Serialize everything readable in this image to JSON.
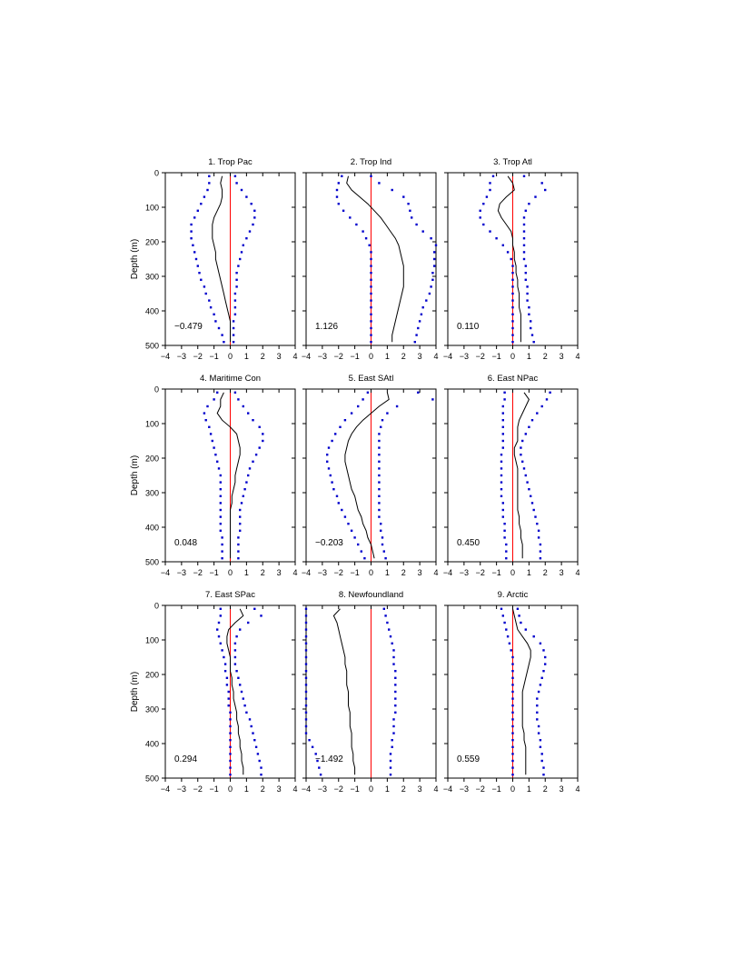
{
  "figure": {
    "ylabel": "Depth  (m)",
    "x_ticks": [
      -4,
      -3,
      -2,
      -1,
      0,
      1,
      2,
      3,
      4
    ],
    "y_ticks": [
      0,
      100,
      200,
      300,
      400,
      500
    ],
    "xlim": [
      -4,
      4
    ],
    "ylim": [
      0,
      500
    ],
    "colors": {
      "mean_line": "#000000",
      "bounds": "#0000cc",
      "zero_line": "#ff0000",
      "axes": "#000000"
    }
  },
  "chart_data": [
    {
      "type": "line",
      "title": "1. Trop Pac",
      "annotation": "−0.479",
      "depth": [
        10,
        30,
        50,
        70,
        90,
        110,
        130,
        150,
        170,
        190,
        210,
        230,
        250,
        270,
        290,
        310,
        330,
        350,
        370,
        390,
        410,
        430,
        450,
        470,
        490
      ],
      "series": [
        {
          "values": [
            -0.5,
            -0.6,
            -0.5,
            -0.5,
            -0.6,
            -0.8,
            -1.0,
            -1.1,
            -1.1,
            -1.1,
            -1.0,
            -0.9,
            -0.9,
            -0.8,
            -0.7,
            -0.6,
            -0.5,
            -0.4,
            -0.3,
            -0.2,
            -0.1,
            0.0,
            0.0,
            0.0,
            0.0
          ]
        },
        {
          "values": [
            -1.3,
            -1.3,
            -1.4,
            -1.6,
            -1.8,
            -2.0,
            -2.2,
            -2.4,
            -2.4,
            -2.4,
            -2.3,
            -2.2,
            -2.1,
            -2.0,
            -1.9,
            -1.8,
            -1.6,
            -1.5,
            -1.3,
            -1.2,
            -1.0,
            -0.9,
            -0.7,
            -0.5,
            -0.4
          ]
        },
        {
          "values": [
            0.3,
            0.4,
            0.7,
            1.0,
            1.3,
            1.5,
            1.5,
            1.4,
            1.2,
            1.0,
            0.8,
            0.7,
            0.6,
            0.5,
            0.4,
            0.4,
            0.4,
            0.3,
            0.3,
            0.3,
            0.3,
            0.2,
            0.2,
            0.2,
            0.2
          ]
        }
      ]
    },
    {
      "type": "line",
      "title": "2. Trop Ind",
      "annotation": "1.126",
      "depth": [
        10,
        30,
        50,
        70,
        90,
        110,
        130,
        150,
        170,
        190,
        210,
        230,
        250,
        270,
        290,
        310,
        330,
        350,
        370,
        390,
        410,
        430,
        450,
        470,
        490
      ],
      "series": [
        {
          "values": [
            -1.4,
            -1.5,
            -1.2,
            -0.7,
            -0.2,
            0.2,
            0.6,
            0.9,
            1.2,
            1.5,
            1.7,
            1.8,
            1.9,
            2.0,
            2.0,
            2.0,
            2.0,
            1.9,
            1.8,
            1.7,
            1.6,
            1.5,
            1.4,
            1.3,
            1.3
          ]
        },
        {
          "values": [
            -1.8,
            -2.0,
            -2.1,
            -2.1,
            -2.0,
            -1.7,
            -1.3,
            -0.9,
            -0.5,
            -0.3,
            -0.1,
            0.0,
            0.0,
            0.0,
            0.0,
            0.0,
            0.0,
            0.0,
            0.0,
            0.0,
            0.0,
            0.0,
            0.0,
            0.0,
            0.0
          ]
        },
        {
          "values": [
            0.0,
            0.5,
            1.3,
            2.0,
            2.3,
            2.4,
            2.5,
            2.8,
            3.2,
            3.7,
            4.0,
            3.9,
            3.9,
            3.9,
            3.8,
            3.8,
            3.7,
            3.6,
            3.4,
            3.2,
            3.1,
            3.0,
            2.9,
            2.8,
            2.7
          ]
        }
      ]
    },
    {
      "type": "line",
      "title": "3. Trop Atl",
      "annotation": "0.110",
      "depth": [
        10,
        30,
        50,
        70,
        90,
        110,
        130,
        150,
        170,
        190,
        210,
        230,
        250,
        270,
        290,
        310,
        330,
        350,
        370,
        390,
        410,
        430,
        450,
        470,
        490
      ],
      "series": [
        {
          "values": [
            -0.3,
            0.0,
            0.1,
            -0.4,
            -0.8,
            -0.9,
            -0.7,
            -0.4,
            -0.1,
            0.0,
            0.0,
            0.1,
            0.1,
            0.2,
            0.2,
            0.3,
            0.3,
            0.4,
            0.4,
            0.4,
            0.5,
            0.5,
            0.5,
            0.5,
            0.5
          ]
        },
        {
          "values": [
            -1.2,
            -1.4,
            -1.4,
            -1.6,
            -1.8,
            -2.0,
            -2.0,
            -1.8,
            -1.4,
            -1.0,
            -0.6,
            -0.3,
            -0.1,
            0.0,
            0.0,
            0.0,
            0.0,
            0.0,
            0.0,
            0.0,
            0.0,
            0.0,
            0.0,
            0.0,
            0.0
          ]
        },
        {
          "values": [
            0.7,
            1.8,
            2.0,
            1.4,
            1.0,
            0.8,
            0.7,
            0.7,
            0.7,
            0.7,
            0.7,
            0.7,
            0.7,
            0.8,
            0.8,
            0.8,
            0.9,
            0.9,
            0.9,
            1.0,
            1.0,
            1.1,
            1.1,
            1.2,
            1.3
          ]
        }
      ]
    },
    {
      "type": "line",
      "title": "4. Maritime Con",
      "annotation": "0.048",
      "depth": [
        10,
        30,
        50,
        70,
        90,
        110,
        130,
        150,
        170,
        190,
        210,
        230,
        250,
        270,
        290,
        310,
        330,
        350,
        370,
        390,
        410,
        430,
        450,
        470,
        490
      ],
      "series": [
        {
          "values": [
            -0.4,
            -0.6,
            -0.6,
            -0.8,
            -0.5,
            0.0,
            0.4,
            0.5,
            0.6,
            0.6,
            0.5,
            0.4,
            0.3,
            0.3,
            0.2,
            0.1,
            0.1,
            0.0,
            0.0,
            0.0,
            0.0,
            0.0,
            0.0,
            0.0,
            0.0
          ]
        },
        {
          "values": [
            -0.8,
            -1.0,
            -1.4,
            -1.6,
            -1.5,
            -1.3,
            -1.2,
            -1.1,
            -1.0,
            -0.9,
            -0.8,
            -0.7,
            -0.6,
            -0.6,
            -0.6,
            -0.6,
            -0.6,
            -0.6,
            -0.6,
            -0.6,
            -0.6,
            -0.5,
            -0.5,
            -0.5,
            -0.5
          ]
        },
        {
          "values": [
            0.3,
            0.5,
            0.8,
            1.1,
            1.4,
            1.8,
            2.0,
            2.0,
            1.8,
            1.6,
            1.4,
            1.2,
            1.1,
            1.0,
            0.9,
            0.8,
            0.7,
            0.6,
            0.6,
            0.6,
            0.6,
            0.5,
            0.5,
            0.5,
            0.5
          ]
        }
      ]
    },
    {
      "type": "line",
      "title": "5. East SAtl",
      "annotation": "−0.203",
      "depth": [
        10,
        30,
        50,
        70,
        90,
        110,
        130,
        150,
        170,
        190,
        210,
        230,
        250,
        270,
        290,
        310,
        330,
        350,
        370,
        390,
        410,
        430,
        450,
        470,
        490
      ],
      "series": [
        {
          "values": [
            1.0,
            1.1,
            0.5,
            0.0,
            -0.5,
            -0.9,
            -1.2,
            -1.4,
            -1.5,
            -1.6,
            -1.6,
            -1.5,
            -1.4,
            -1.3,
            -1.2,
            -1.0,
            -0.9,
            -0.8,
            -0.6,
            -0.5,
            -0.3,
            -0.2,
            0.0,
            0.1,
            0.2
          ]
        },
        {
          "values": [
            -0.2,
            -0.5,
            -0.8,
            -1.2,
            -1.6,
            -1.9,
            -2.2,
            -2.4,
            -2.6,
            -2.7,
            -2.7,
            -2.6,
            -2.5,
            -2.4,
            -2.3,
            -2.1,
            -2.0,
            -1.8,
            -1.6,
            -1.4,
            -1.2,
            -1.0,
            -0.8,
            -0.6,
            -0.4
          ]
        },
        {
          "values": [
            2.9,
            3.8,
            1.6,
            1.0,
            0.7,
            0.6,
            0.5,
            0.5,
            0.5,
            0.5,
            0.5,
            0.5,
            0.5,
            0.5,
            0.5,
            0.5,
            0.5,
            0.5,
            0.5,
            0.6,
            0.6,
            0.7,
            0.7,
            0.8,
            0.9
          ]
        }
      ]
    },
    {
      "type": "line",
      "title": "6. East NPac",
      "annotation": "0.450",
      "depth": [
        10,
        30,
        50,
        70,
        90,
        110,
        130,
        150,
        170,
        190,
        210,
        230,
        250,
        270,
        290,
        310,
        330,
        350,
        370,
        390,
        410,
        430,
        450,
        470,
        490
      ],
      "series": [
        {
          "values": [
            0.7,
            1.0,
            0.8,
            0.6,
            0.4,
            0.3,
            0.3,
            0.3,
            0.1,
            0.1,
            0.2,
            0.3,
            0.3,
            0.3,
            0.3,
            0.3,
            0.3,
            0.3,
            0.4,
            0.4,
            0.5,
            0.5,
            0.6,
            0.6,
            0.6
          ]
        },
        {
          "values": [
            -0.5,
            -0.5,
            -0.6,
            -0.6,
            -0.6,
            -0.6,
            -0.6,
            -0.6,
            -0.6,
            -0.7,
            -0.7,
            -0.7,
            -0.7,
            -0.7,
            -0.7,
            -0.7,
            -0.6,
            -0.6,
            -0.6,
            -0.5,
            -0.5,
            -0.5,
            -0.4,
            -0.4,
            -0.4
          ]
        },
        {
          "values": [
            2.3,
            2.1,
            1.8,
            1.5,
            1.2,
            1.0,
            0.8,
            0.6,
            0.5,
            0.5,
            0.6,
            0.7,
            0.8,
            0.9,
            1.0,
            1.1,
            1.2,
            1.3,
            1.4,
            1.5,
            1.6,
            1.6,
            1.7,
            1.7,
            1.7
          ]
        }
      ]
    },
    {
      "type": "line",
      "title": "7. East SPac",
      "annotation": "0.294",
      "depth": [
        10,
        30,
        50,
        70,
        90,
        110,
        130,
        150,
        170,
        190,
        210,
        230,
        250,
        270,
        290,
        310,
        330,
        350,
        370,
        390,
        410,
        430,
        450,
        470,
        490
      ],
      "series": [
        {
          "values": [
            0.6,
            0.8,
            0.3,
            -0.1,
            -0.2,
            -0.2,
            -0.1,
            0.0,
            0.0,
            0.0,
            0.1,
            0.1,
            0.2,
            0.2,
            0.3,
            0.4,
            0.4,
            0.5,
            0.5,
            0.6,
            0.6,
            0.7,
            0.7,
            0.8,
            0.8
          ]
        },
        {
          "values": [
            -0.6,
            -0.6,
            -0.7,
            -0.8,
            -0.7,
            -0.6,
            -0.5,
            -0.4,
            -0.3,
            -0.3,
            -0.2,
            -0.2,
            -0.1,
            -0.1,
            -0.1,
            0.0,
            0.0,
            0.0,
            0.0,
            0.0,
            0.0,
            0.0,
            0.0,
            0.0,
            0.0
          ]
        },
        {
          "values": [
            1.5,
            1.9,
            1.1,
            0.6,
            0.4,
            0.3,
            0.3,
            0.3,
            0.3,
            0.4,
            0.5,
            0.6,
            0.7,
            0.8,
            0.9,
            1.0,
            1.2,
            1.3,
            1.4,
            1.5,
            1.6,
            1.7,
            1.8,
            1.9,
            1.9
          ]
        }
      ]
    },
    {
      "type": "line",
      "title": "8. Newfoundland",
      "annotation": "−1.492",
      "depth": [
        10,
        30,
        50,
        70,
        90,
        110,
        130,
        150,
        170,
        190,
        210,
        230,
        250,
        270,
        290,
        310,
        330,
        350,
        370,
        390,
        410,
        430,
        450,
        470,
        490
      ],
      "series": [
        {
          "values": [
            -1.9,
            -2.3,
            -2.1,
            -2.0,
            -1.9,
            -1.8,
            -1.7,
            -1.6,
            -1.6,
            -1.5,
            -1.5,
            -1.5,
            -1.4,
            -1.4,
            -1.4,
            -1.3,
            -1.3,
            -1.3,
            -1.2,
            -1.2,
            -1.2,
            -1.1,
            -1.1,
            -1.0,
            -1.0
          ]
        },
        {
          "values": [
            -4.0,
            -4.0,
            -4.0,
            -4.0,
            -4.0,
            -4.0,
            -4.0,
            -4.0,
            -4.0,
            -4.0,
            -4.0,
            -4.0,
            -4.0,
            -4.0,
            -4.0,
            -4.0,
            -4.0,
            -4.0,
            -4.0,
            -3.8,
            -3.6,
            -3.4,
            -3.3,
            -3.2,
            -3.1
          ]
        },
        {
          "values": [
            0.8,
            0.9,
            1.0,
            1.1,
            1.2,
            1.3,
            1.4,
            1.4,
            1.4,
            1.5,
            1.5,
            1.5,
            1.5,
            1.5,
            1.5,
            1.5,
            1.4,
            1.4,
            1.4,
            1.3,
            1.3,
            1.2,
            1.2,
            1.2,
            1.2
          ]
        }
      ]
    },
    {
      "type": "line",
      "title": "9. Arctic",
      "annotation": "0.559",
      "depth": [
        10,
        30,
        50,
        70,
        90,
        110,
        130,
        150,
        170,
        190,
        210,
        230,
        250,
        270,
        290,
        310,
        330,
        350,
        370,
        390,
        410,
        430,
        450,
        470,
        490
      ],
      "series": [
        {
          "values": [
            0.0,
            0.1,
            0.2,
            0.3,
            0.6,
            0.9,
            1.1,
            1.1,
            1.0,
            0.9,
            0.8,
            0.7,
            0.6,
            0.6,
            0.6,
            0.6,
            0.6,
            0.6,
            0.7,
            0.7,
            0.8,
            0.8,
            0.8,
            0.8,
            0.8
          ]
        },
        {
          "values": [
            -0.7,
            -0.6,
            -0.5,
            -0.4,
            -0.3,
            -0.2,
            -0.1,
            0.0,
            0.0,
            0.0,
            0.0,
            0.0,
            0.0,
            0.0,
            0.0,
            0.0,
            0.0,
            0.0,
            0.0,
            0.0,
            0.0,
            0.0,
            0.0,
            0.0,
            0.0
          ]
        },
        {
          "values": [
            0.3,
            0.4,
            0.5,
            0.8,
            1.3,
            1.7,
            1.9,
            2.0,
            2.0,
            1.9,
            1.8,
            1.7,
            1.6,
            1.5,
            1.5,
            1.5,
            1.5,
            1.6,
            1.6,
            1.7,
            1.7,
            1.8,
            1.8,
            1.9,
            1.9
          ]
        }
      ]
    }
  ]
}
